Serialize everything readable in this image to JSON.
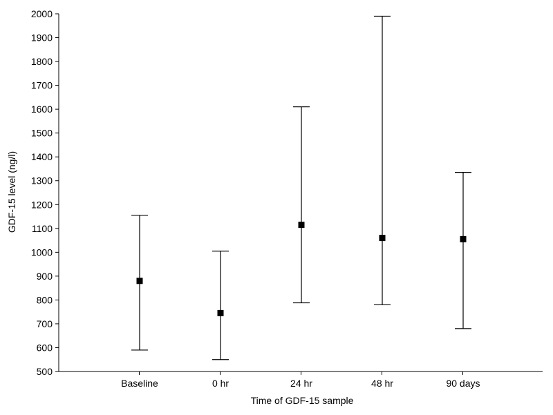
{
  "chart_data": {
    "type": "scatter",
    "title": "",
    "xlabel": "Time of GDF-15 sample",
    "ylabel": "GDF-15 level (ng/l)",
    "ylim": [
      500,
      2000
    ],
    "y_ticks": [
      500,
      600,
      700,
      800,
      900,
      1000,
      1100,
      1200,
      1300,
      1400,
      1500,
      1600,
      1700,
      1800,
      1900,
      2000
    ],
    "categories": [
      "Baseline",
      "0 hr",
      "24 hr",
      "48 hr",
      "90 days"
    ],
    "series": [
      {
        "values": [
          880,
          745,
          1115,
          1060,
          1055
        ],
        "error_low": [
          590,
          550,
          788,
          780,
          680
        ],
        "error_high": [
          1155,
          1005,
          1610,
          1990,
          1335
        ]
      }
    ],
    "grid": false,
    "legend": "none"
  }
}
